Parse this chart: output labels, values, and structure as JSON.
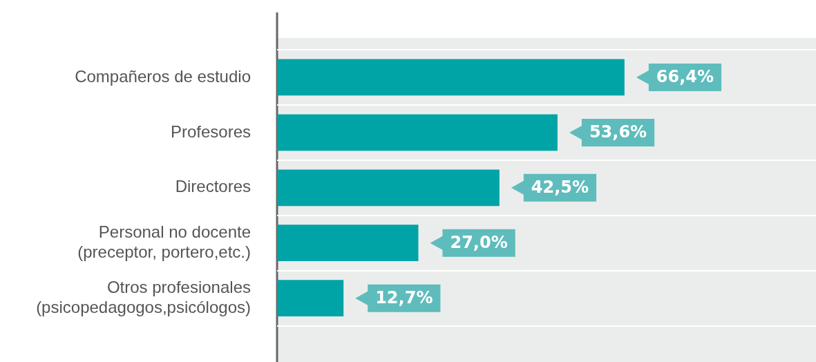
{
  "chart_data": {
    "type": "bar",
    "orientation": "horizontal",
    "categories": [
      "Compañeros de estudio",
      "Profesores",
      "Directores",
      "Personal no docente (preceptor, portero,etc.)",
      "Otros profesionales (psicopedagogos,psicólogos)"
    ],
    "values": [
      66.4,
      53.6,
      42.5,
      27.0,
      12.7
    ],
    "value_labels": [
      "66,4%",
      "53,6%",
      "42,5%",
      "27,0%",
      "12,7%"
    ],
    "color": "#00a4a6",
    "xlim": [
      0,
      103
    ],
    "grid": "y",
    "tick_labels": "y",
    "legend": false
  }
}
